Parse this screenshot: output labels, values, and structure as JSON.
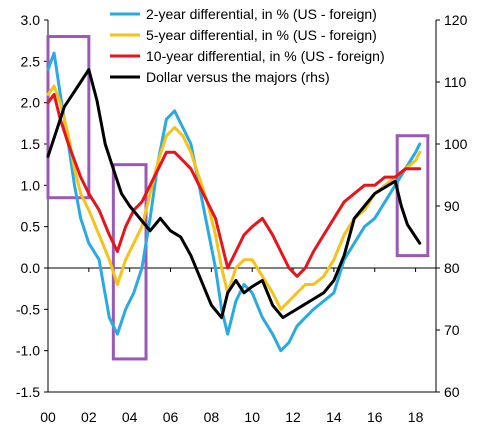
{
  "chart_data": {
    "type": "line",
    "title": "",
    "xlabel": "",
    "ylabel": "",
    "y2label": "",
    "x_ticks": [
      "00",
      "02",
      "04",
      "06",
      "08",
      "10",
      "12",
      "14",
      "16",
      "18"
    ],
    "x_range": [
      2000,
      2019
    ],
    "ylim": [
      -1.5,
      3.0
    ],
    "y_ticks": [
      "3.0",
      "2.5",
      "2.0",
      "1.5",
      "1.0",
      "0.5",
      "0.0",
      "-0.5",
      "-1.0",
      "-1.5"
    ],
    "y2lim": [
      60,
      120
    ],
    "y2_ticks": [
      "120",
      "110",
      "100",
      "90",
      "80",
      "70",
      "60"
    ],
    "legend_position": "top-right",
    "series": [
      {
        "name": "2-year differential, in % (US - foreign)",
        "color": "#29abe2",
        "axis": "left",
        "points": [
          [
            2000.0,
            2.4
          ],
          [
            2000.3,
            2.6
          ],
          [
            2000.6,
            2.1
          ],
          [
            2001.0,
            1.5
          ],
          [
            2001.3,
            1.0
          ],
          [
            2001.6,
            0.6
          ],
          [
            2002.0,
            0.3
          ],
          [
            2002.5,
            0.1
          ],
          [
            2003.0,
            -0.6
          ],
          [
            2003.4,
            -0.8
          ],
          [
            2003.8,
            -0.5
          ],
          [
            2004.2,
            -0.3
          ],
          [
            2004.6,
            0.0
          ],
          [
            2005.0,
            0.6
          ],
          [
            2005.4,
            1.3
          ],
          [
            2005.8,
            1.8
          ],
          [
            2006.2,
            1.9
          ],
          [
            2006.6,
            1.7
          ],
          [
            2007.0,
            1.5
          ],
          [
            2007.4,
            1.0
          ],
          [
            2007.8,
            0.5
          ],
          [
            2008.2,
            0.0
          ],
          [
            2008.5,
            -0.5
          ],
          [
            2008.8,
            -0.8
          ],
          [
            2009.2,
            -0.4
          ],
          [
            2009.6,
            -0.2
          ],
          [
            2010.0,
            -0.3
          ],
          [
            2010.5,
            -0.6
          ],
          [
            2011.0,
            -0.8
          ],
          [
            2011.4,
            -1.0
          ],
          [
            2011.8,
            -0.9
          ],
          [
            2012.2,
            -0.7
          ],
          [
            2012.6,
            -0.6
          ],
          [
            2013.0,
            -0.5
          ],
          [
            2013.5,
            -0.4
          ],
          [
            2014.0,
            -0.3
          ],
          [
            2014.5,
            0.1
          ],
          [
            2015.0,
            0.3
          ],
          [
            2015.5,
            0.5
          ],
          [
            2016.0,
            0.6
          ],
          [
            2016.5,
            0.8
          ],
          [
            2017.0,
            1.0
          ],
          [
            2017.5,
            1.2
          ],
          [
            2018.0,
            1.4
          ],
          [
            2018.2,
            1.5
          ]
        ]
      },
      {
        "name": "5-year differential, in % (US - foreign)",
        "color": "#f7c21a",
        "axis": "left",
        "points": [
          [
            2000.0,
            2.1
          ],
          [
            2000.3,
            2.2
          ],
          [
            2000.6,
            2.0
          ],
          [
            2001.0,
            1.6
          ],
          [
            2001.3,
            1.2
          ],
          [
            2001.6,
            0.9
          ],
          [
            2002.0,
            0.7
          ],
          [
            2002.5,
            0.4
          ],
          [
            2003.0,
            0.1
          ],
          [
            2003.4,
            -0.2
          ],
          [
            2003.8,
            0.1
          ],
          [
            2004.2,
            0.3
          ],
          [
            2004.6,
            0.5
          ],
          [
            2005.0,
            0.9
          ],
          [
            2005.4,
            1.3
          ],
          [
            2005.8,
            1.6
          ],
          [
            2006.2,
            1.7
          ],
          [
            2006.6,
            1.6
          ],
          [
            2007.0,
            1.4
          ],
          [
            2007.4,
            1.1
          ],
          [
            2007.8,
            0.8
          ],
          [
            2008.2,
            0.4
          ],
          [
            2008.5,
            0.0
          ],
          [
            2008.8,
            -0.3
          ],
          [
            2009.2,
            0.0
          ],
          [
            2009.6,
            0.1
          ],
          [
            2010.0,
            0.1
          ],
          [
            2010.5,
            -0.1
          ],
          [
            2011.0,
            -0.3
          ],
          [
            2011.4,
            -0.5
          ],
          [
            2011.8,
            -0.4
          ],
          [
            2012.2,
            -0.3
          ],
          [
            2012.6,
            -0.2
          ],
          [
            2013.0,
            -0.2
          ],
          [
            2013.5,
            -0.1
          ],
          [
            2014.0,
            0.1
          ],
          [
            2014.5,
            0.4
          ],
          [
            2015.0,
            0.6
          ],
          [
            2015.5,
            0.7
          ],
          [
            2016.0,
            0.9
          ],
          [
            2016.5,
            1.0
          ],
          [
            2017.0,
            1.1
          ],
          [
            2017.5,
            1.2
          ],
          [
            2018.0,
            1.3
          ],
          [
            2018.2,
            1.4
          ]
        ]
      },
      {
        "name": "10-year differential, in % (US - foreign)",
        "color": "#e8141b",
        "axis": "left",
        "points": [
          [
            2000.0,
            2.0
          ],
          [
            2000.3,
            2.1
          ],
          [
            2000.6,
            1.8
          ],
          [
            2001.0,
            1.5
          ],
          [
            2001.3,
            1.3
          ],
          [
            2001.6,
            1.1
          ],
          [
            2002.0,
            0.9
          ],
          [
            2002.5,
            0.7
          ],
          [
            2003.0,
            0.4
          ],
          [
            2003.4,
            0.2
          ],
          [
            2003.8,
            0.5
          ],
          [
            2004.2,
            0.7
          ],
          [
            2004.6,
            0.8
          ],
          [
            2005.0,
            1.0
          ],
          [
            2005.4,
            1.2
          ],
          [
            2005.8,
            1.4
          ],
          [
            2006.2,
            1.4
          ],
          [
            2006.6,
            1.3
          ],
          [
            2007.0,
            1.2
          ],
          [
            2007.4,
            1.0
          ],
          [
            2007.8,
            0.8
          ],
          [
            2008.2,
            0.6
          ],
          [
            2008.5,
            0.3
          ],
          [
            2008.8,
            0.0
          ],
          [
            2009.2,
            0.2
          ],
          [
            2009.6,
            0.4
          ],
          [
            2010.0,
            0.5
          ],
          [
            2010.5,
            0.6
          ],
          [
            2011.0,
            0.4
          ],
          [
            2011.4,
            0.2
          ],
          [
            2011.8,
            0.0
          ],
          [
            2012.2,
            -0.1
          ],
          [
            2012.6,
            0.0
          ],
          [
            2013.0,
            0.2
          ],
          [
            2013.5,
            0.4
          ],
          [
            2014.0,
            0.6
          ],
          [
            2014.5,
            0.8
          ],
          [
            2015.0,
            0.9
          ],
          [
            2015.5,
            1.0
          ],
          [
            2016.0,
            1.0
          ],
          [
            2016.5,
            1.1
          ],
          [
            2017.0,
            1.1
          ],
          [
            2017.5,
            1.2
          ],
          [
            2018.0,
            1.2
          ],
          [
            2018.2,
            1.2
          ]
        ]
      },
      {
        "name": "Dollar versus the majors (rhs)",
        "color": "#000000",
        "axis": "right",
        "points": [
          [
            2000.0,
            98
          ],
          [
            2000.4,
            102
          ],
          [
            2000.8,
            106
          ],
          [
            2001.2,
            108
          ],
          [
            2001.6,
            110
          ],
          [
            2002.0,
            112
          ],
          [
            2002.4,
            107
          ],
          [
            2002.8,
            100
          ],
          [
            2003.2,
            96
          ],
          [
            2003.6,
            92
          ],
          [
            2004.0,
            90
          ],
          [
            2004.5,
            88
          ],
          [
            2005.0,
            86
          ],
          [
            2005.5,
            88
          ],
          [
            2006.0,
            86
          ],
          [
            2006.5,
            85
          ],
          [
            2007.0,
            82
          ],
          [
            2007.5,
            78
          ],
          [
            2008.0,
            74
          ],
          [
            2008.5,
            72
          ],
          [
            2008.8,
            76
          ],
          [
            2009.2,
            78
          ],
          [
            2009.6,
            76
          ],
          [
            2010.0,
            77
          ],
          [
            2010.5,
            78
          ],
          [
            2011.0,
            74
          ],
          [
            2011.5,
            72
          ],
          [
            2012.0,
            73
          ],
          [
            2012.5,
            74
          ],
          [
            2013.0,
            75
          ],
          [
            2013.5,
            76
          ],
          [
            2014.0,
            78
          ],
          [
            2014.5,
            82
          ],
          [
            2015.0,
            88
          ],
          [
            2015.5,
            90
          ],
          [
            2016.0,
            92
          ],
          [
            2016.5,
            93
          ],
          [
            2017.0,
            94
          ],
          [
            2017.3,
            90
          ],
          [
            2017.6,
            87
          ],
          [
            2018.0,
            85
          ],
          [
            2018.2,
            84
          ]
        ]
      }
    ],
    "annotations": [
      {
        "type": "highlight-box",
        "color": "#9b59b6",
        "x_range": [
          2000.0,
          2002.0
        ],
        "y_range": [
          0.85,
          2.8
        ]
      },
      {
        "type": "highlight-box",
        "color": "#9b59b6",
        "x_range": [
          2003.2,
          2004.8
        ],
        "y_range": [
          -1.1,
          1.25
        ]
      },
      {
        "type": "highlight-box",
        "color": "#9b59b6",
        "x_range": [
          2017.1,
          2018.6
        ],
        "y_range": [
          0.15,
          1.6
        ]
      }
    ]
  }
}
